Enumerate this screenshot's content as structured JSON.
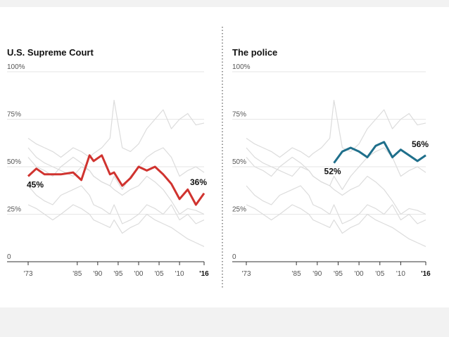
{
  "chart_data": [
    {
      "type": "line",
      "title": "U.S. Supreme Court",
      "x": [
        1973,
        1975,
        1977,
        1979,
        1981,
        1984,
        1986,
        1988,
        1989,
        1991,
        1993,
        1994,
        1996,
        1998,
        2000,
        2002,
        2004,
        2006,
        2008,
        2010,
        2012,
        2014,
        2016
      ],
      "xlim": [
        1973,
        2016
      ],
      "xticks": [
        {
          "value": 1973,
          "label": "'73"
        },
        {
          "value": 1985,
          "label": "'85"
        },
        {
          "value": 1990,
          "label": "'90"
        },
        {
          "value": 1995,
          "label": "'95"
        },
        {
          "value": 2000,
          "label": "'00"
        },
        {
          "value": 2005,
          "label": "'05"
        },
        {
          "value": 2010,
          "label": "'10"
        },
        {
          "value": 2016,
          "label": "'16"
        }
      ],
      "ylim": [
        0,
        100
      ],
      "yticks": [
        0,
        {
          "value": 25,
          "label": "25%"
        },
        {
          "value": 50,
          "label": "50%"
        },
        {
          "value": 75,
          "label": "75%"
        },
        {
          "value": 100,
          "label": "100%"
        }
      ],
      "grid": true,
      "series": [
        {
          "color": "#dcdcdc",
          "values": [
            65,
            62,
            60,
            58,
            55,
            60,
            58,
            55,
            57,
            60,
            65,
            85,
            60,
            58,
            62,
            70,
            75,
            80,
            70,
            75,
            78,
            72,
            73
          ]
        },
        {
          "color": "#dcdcdc",
          "values": [
            55,
            50,
            48,
            45,
            50,
            55,
            52,
            48,
            45,
            42,
            40,
            45,
            38,
            45,
            50,
            55,
            58,
            60,
            55,
            45,
            48,
            50,
            47
          ]
        },
        {
          "color": "#dcdcdc",
          "values": [
            40,
            35,
            32,
            30,
            35,
            38,
            40,
            35,
            30,
            28,
            25,
            30,
            20,
            22,
            25,
            30,
            28,
            25,
            30,
            22,
            25,
            20,
            22
          ]
        },
        {
          "color": "#dcdcdc",
          "values": [
            30,
            28,
            25,
            22,
            25,
            30,
            28,
            25,
            22,
            20,
            18,
            22,
            15,
            18,
            20,
            25,
            22,
            20,
            18,
            15,
            12,
            10,
            8
          ]
        },
        {
          "color": "#dcdcdc",
          "values": [
            60,
            55,
            52,
            50,
            48,
            45,
            50,
            48,
            45,
            42,
            40,
            38,
            35,
            38,
            40,
            45,
            42,
            38,
            32,
            25,
            28,
            27,
            25
          ]
        },
        {
          "color": "#d0332f",
          "values": [
            45,
            49,
            46,
            46,
            46,
            47,
            43,
            56,
            53,
            56,
            46,
            47,
            40,
            44,
            50,
            48,
            50,
            46,
            41,
            33,
            38,
            30,
            36
          ],
          "value_labels": [
            "45%",
            null,
            null,
            null,
            null,
            null,
            null,
            null,
            null,
            null,
            null,
            null,
            null,
            null,
            null,
            null,
            null,
            null,
            null,
            null,
            null,
            null,
            "36%"
          ]
        }
      ]
    },
    {
      "type": "line",
      "title": "The police",
      "x": [
        1973,
        1975,
        1977,
        1979,
        1981,
        1984,
        1986,
        1988,
        1989,
        1991,
        1993,
        1994,
        1996,
        1998,
        2000,
        2002,
        2004,
        2006,
        2008,
        2010,
        2012,
        2014,
        2016
      ],
      "xlim": [
        1973,
        2016
      ],
      "xticks": [
        {
          "value": 1973,
          "label": "'73"
        },
        {
          "value": 1985,
          "label": "'85"
        },
        {
          "value": 1990,
          "label": "'90"
        },
        {
          "value": 1995,
          "label": "'95"
        },
        {
          "value": 2000,
          "label": "'00"
        },
        {
          "value": 2005,
          "label": "'05"
        },
        {
          "value": 2010,
          "label": "'10"
        },
        {
          "value": 2016,
          "label": "'16"
        }
      ],
      "ylim": [
        0,
        100
      ],
      "yticks": [
        0,
        {
          "value": 25,
          "label": "25%"
        },
        {
          "value": 50,
          "label": "50%"
        },
        {
          "value": 75,
          "label": "75%"
        },
        {
          "value": 100,
          "label": "100%"
        }
      ],
      "grid": true,
      "series": [
        {
          "color": "#dcdcdc",
          "values": [
            65,
            62,
            60,
            58,
            55,
            60,
            58,
            55,
            57,
            60,
            65,
            85,
            60,
            58,
            62,
            70,
            75,
            80,
            70,
            75,
            78,
            72,
            73
          ]
        },
        {
          "color": "#dcdcdc",
          "values": [
            55,
            50,
            48,
            45,
            50,
            55,
            52,
            48,
            45,
            42,
            40,
            45,
            38,
            45,
            50,
            55,
            58,
            60,
            55,
            45,
            48,
            50,
            47
          ]
        },
        {
          "color": "#dcdcdc",
          "values": [
            40,
            35,
            32,
            30,
            35,
            38,
            40,
            35,
            30,
            28,
            25,
            30,
            20,
            22,
            25,
            30,
            28,
            25,
            30,
            22,
            25,
            20,
            22
          ]
        },
        {
          "color": "#dcdcdc",
          "values": [
            30,
            28,
            25,
            22,
            25,
            30,
            28,
            25,
            22,
            20,
            18,
            22,
            15,
            18,
            20,
            25,
            22,
            20,
            18,
            15,
            12,
            10,
            8
          ]
        },
        {
          "color": "#dcdcdc",
          "values": [
            60,
            55,
            52,
            50,
            48,
            45,
            50,
            48,
            45,
            42,
            40,
            38,
            35,
            38,
            40,
            45,
            42,
            38,
            32,
            25,
            28,
            27,
            25
          ]
        },
        {
          "color": "#1f6f8b",
          "values": [
            null,
            null,
            null,
            null,
            null,
            null,
            null,
            null,
            null,
            null,
            null,
            52,
            58,
            60,
            58,
            55,
            61,
            63,
            55,
            59,
            56,
            53,
            56
          ],
          "value_labels": [
            null,
            null,
            null,
            null,
            null,
            null,
            null,
            null,
            null,
            null,
            null,
            "52%",
            null,
            null,
            null,
            null,
            null,
            null,
            null,
            null,
            null,
            null,
            "56%"
          ]
        }
      ]
    }
  ]
}
